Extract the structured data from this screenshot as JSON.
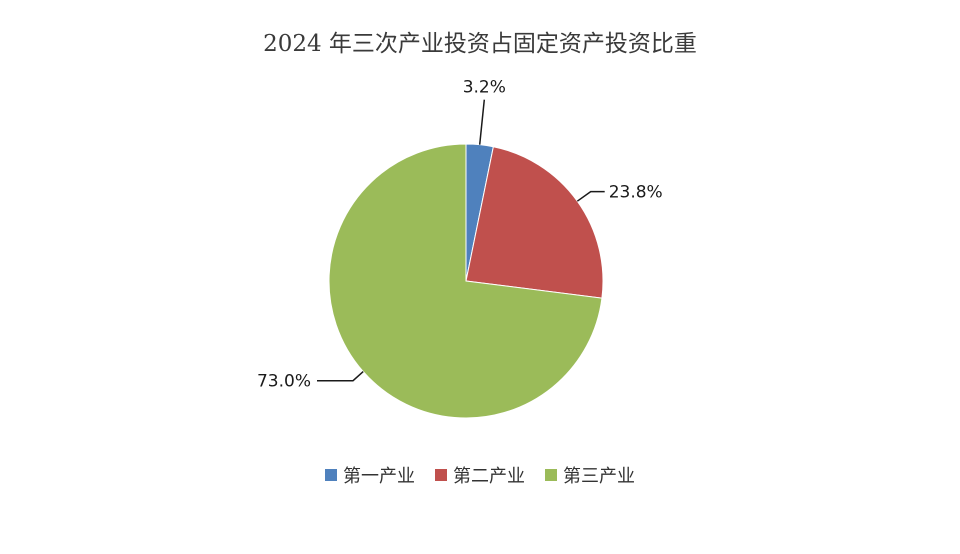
{
  "chart_data": {
    "type": "pie",
    "title": "2024 年三次产业投资占固定资产投资比重",
    "categories": [
      "第一产业",
      "第二产业",
      "第三产业"
    ],
    "values": [
      3.2,
      23.8,
      73.0
    ],
    "value_labels": [
      "3.2%",
      "23.8%",
      "73.0%"
    ],
    "colors": [
      "#4f81bd",
      "#c0504d",
      "#9bbb59"
    ],
    "legend_position": "bottom",
    "start_angle_deg": 0,
    "direction": "clockwise"
  }
}
